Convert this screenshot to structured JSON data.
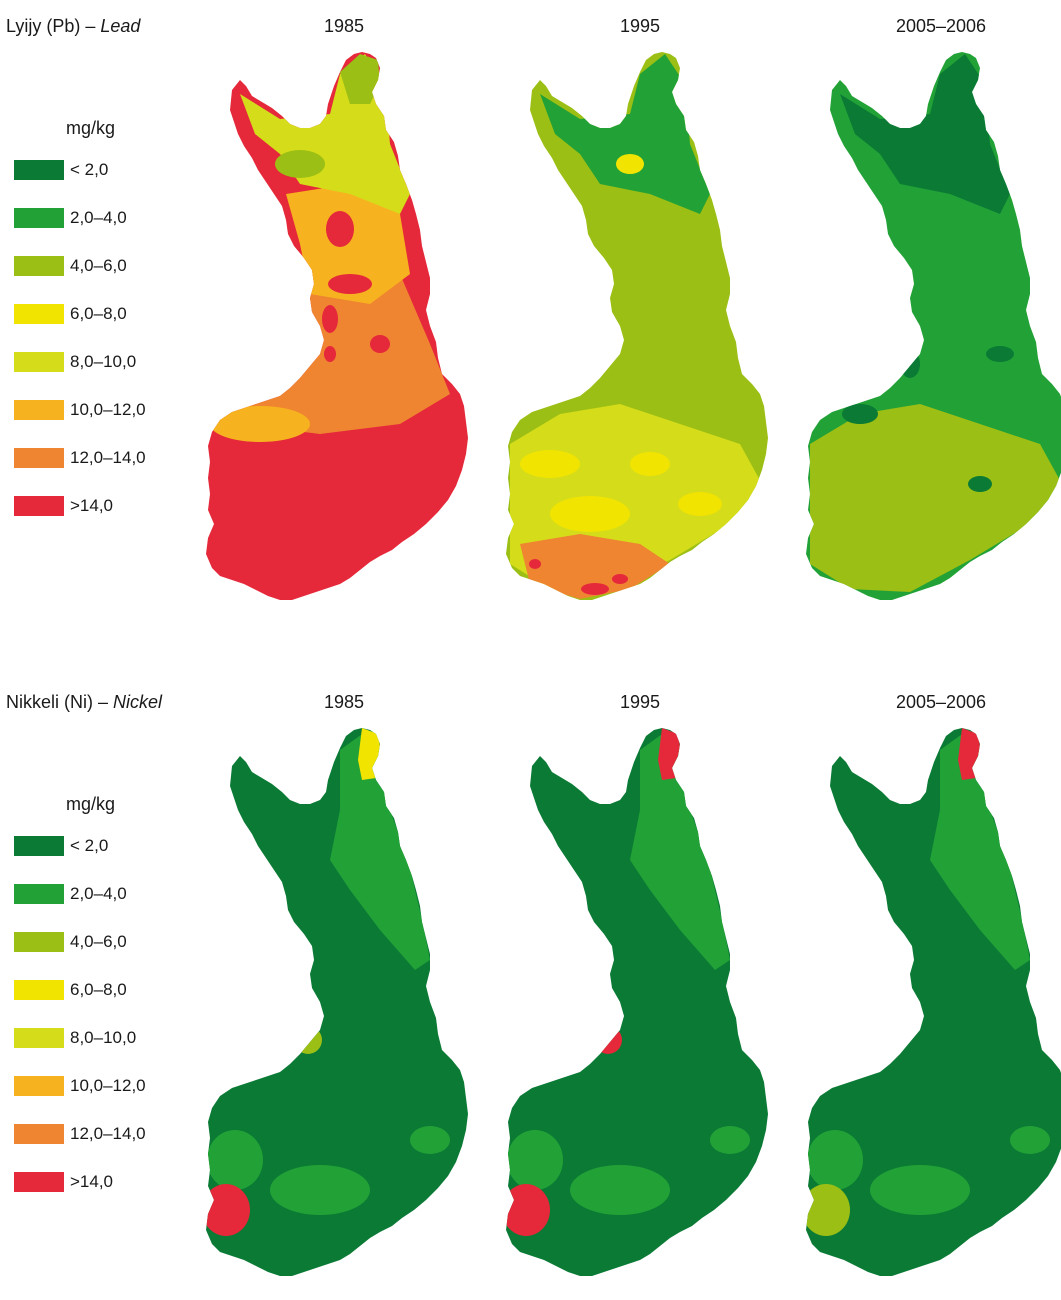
{
  "colors": {
    "c1": "#0a7a35",
    "c2": "#22a236",
    "c3": "#9bbf14",
    "c4": "#f1e400",
    "c5": "#d5dc1a",
    "c6": "#f7b31f",
    "c7": "#ef8531",
    "c8": "#e5283a"
  },
  "legend": {
    "unit": "mg/kg",
    "classes": [
      {
        "label": "< 2,0",
        "color": "c1"
      },
      {
        "label": "2,0–4,0",
        "color": "c2"
      },
      {
        "label": "4,0–6,0",
        "color": "c3"
      },
      {
        "label": "6,0–8,0",
        "color": "c4"
      },
      {
        "label": "8,0–10,0",
        "color": "c5"
      },
      {
        "label": "10,0–12,0",
        "color": "c6"
      },
      {
        "label": "12,0–14,0",
        "color": "c7"
      },
      {
        "label": ">14,0",
        "color": "c8"
      }
    ]
  },
  "panels": [
    {
      "element_fi": "Lyijy (Pb) – ",
      "element_en": "Lead",
      "years": [
        "1985",
        "1995",
        "2005–2006"
      ],
      "maps": [
        {
          "base": "c8",
          "zones": [
            {
              "color": "c7",
              "region": "middle"
            },
            {
              "color": "c6",
              "region": "waist"
            },
            {
              "color": "c5",
              "region": "north"
            },
            {
              "color": "c3",
              "region": "far-north"
            },
            {
              "color": "c8",
              "region": "hotspots-central"
            }
          ]
        },
        {
          "base": "c3",
          "zones": [
            {
              "color": "c2",
              "region": "north"
            },
            {
              "color": "c5",
              "region": "south"
            },
            {
              "color": "c4",
              "region": "south-spots"
            },
            {
              "color": "c7",
              "region": "south-coast"
            },
            {
              "color": "c8",
              "region": "south-coast-spots"
            }
          ]
        },
        {
          "base": "c2",
          "zones": [
            {
              "color": "c1",
              "region": "north"
            },
            {
              "color": "c3",
              "region": "south"
            },
            {
              "color": "c1",
              "region": "scattered-spots"
            }
          ]
        }
      ]
    },
    {
      "element_fi": "Nikkeli (Ni) – ",
      "element_en": "Nickel",
      "years": [
        "1985",
        "1995",
        "2005–2006"
      ],
      "maps": [
        {
          "base": "c1",
          "zones": [
            {
              "color": "c2",
              "region": "north-east"
            },
            {
              "color": "c4",
              "region": "far-north-tip"
            },
            {
              "color": "c3",
              "region": "central-spot"
            },
            {
              "color": "c8",
              "region": "south-west-spot"
            }
          ]
        },
        {
          "base": "c1",
          "zones": [
            {
              "color": "c2",
              "region": "north-east"
            },
            {
              "color": "c8",
              "region": "far-north-tip"
            },
            {
              "color": "c8",
              "region": "central-spot"
            },
            {
              "color": "c8",
              "region": "south-west-spot"
            }
          ]
        },
        {
          "base": "c1",
          "zones": [
            {
              "color": "c2",
              "region": "north-east"
            },
            {
              "color": "c8",
              "region": "far-north-tip"
            },
            {
              "color": "c3",
              "region": "south-west-spot"
            }
          ]
        }
      ]
    }
  ]
}
